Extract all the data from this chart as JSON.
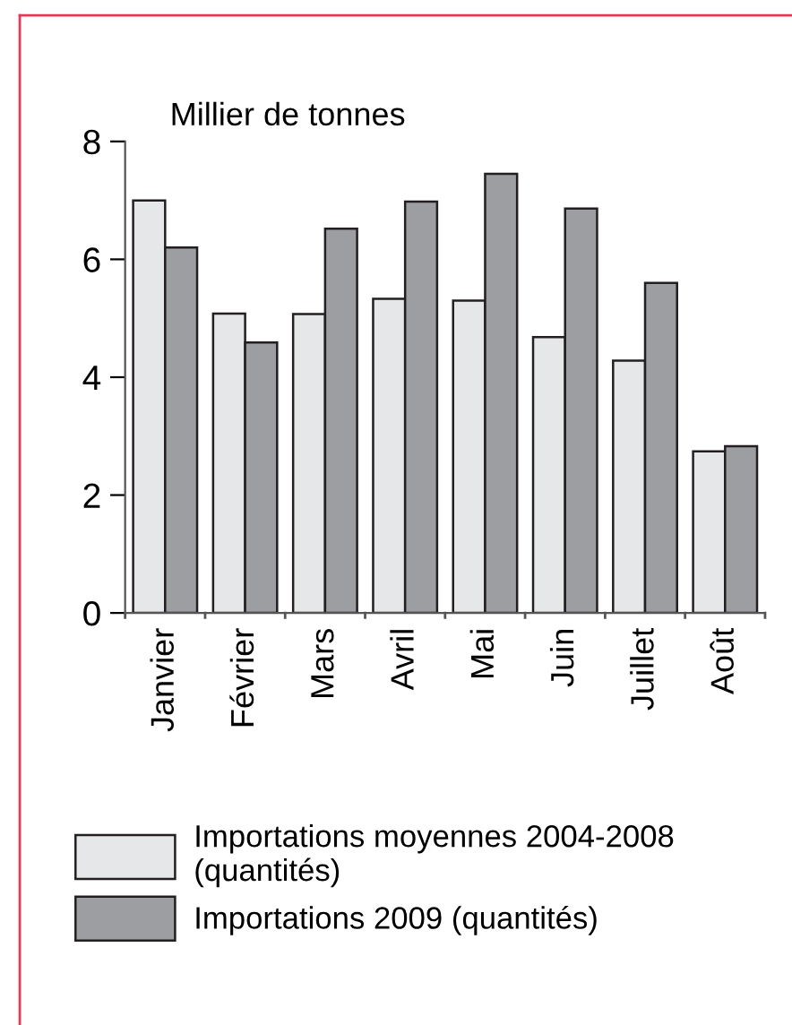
{
  "chart_data": {
    "type": "bar",
    "ylabel": "Millier de tonnes",
    "categories": [
      "Janvier",
      "Février",
      "Mars",
      "Avril",
      "Mai",
      "Juin",
      "Juillet",
      "Août"
    ],
    "series": [
      {
        "name": "Importations moyennes 2004-2008\n(quantités)",
        "color": "#e6e7e9",
        "values": [
          7.0,
          5.08,
          5.07,
          5.33,
          5.3,
          4.68,
          4.28,
          2.74
        ]
      },
      {
        "name": "Importations 2009 (quantités)",
        "color": "#9d9ea2",
        "values": [
          6.2,
          4.59,
          6.52,
          6.98,
          7.45,
          6.86,
          5.6,
          2.83
        ]
      }
    ],
    "ylim": [
      0,
      8
    ],
    "yticks": [
      0,
      2,
      4,
      6,
      8
    ],
    "grid": false,
    "legend": "bottom"
  }
}
